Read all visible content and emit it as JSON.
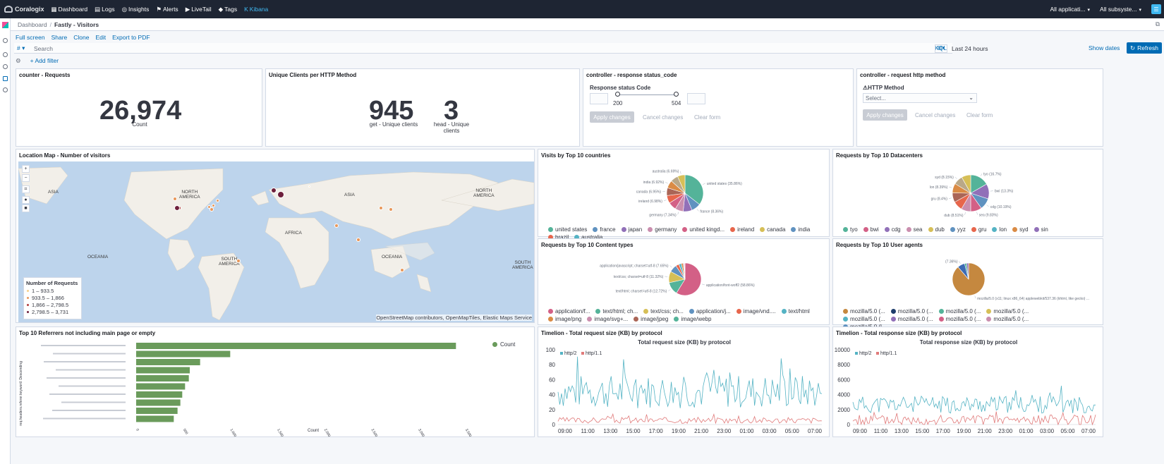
{
  "topnav": {
    "brand": "Coralogix",
    "items": [
      {
        "label": "Dashboard",
        "icon": "grid-icon"
      },
      {
        "label": "Logs",
        "icon": "document-icon"
      },
      {
        "label": "Insights",
        "icon": "insights-icon"
      },
      {
        "label": "Alerts",
        "icon": "flag-icon"
      },
      {
        "label": "LiveTail",
        "icon": "play-icon"
      },
      {
        "label": "Tags",
        "icon": "tag-icon"
      },
      {
        "label": "Kibana",
        "icon": "kibana-icon"
      }
    ],
    "app_select": "All applicati...",
    "subsystem_select": "All subsyste..."
  },
  "breadcrumb": {
    "root": "Dashboard",
    "current": "Fastly - Visitors"
  },
  "actions": [
    "Full screen",
    "Share",
    "Clone",
    "Edit",
    "Export to PDF"
  ],
  "query": {
    "placeholder": "Search",
    "lang": "KQL",
    "time": "Last 24 hours",
    "show_dates": "Show dates",
    "refresh": "Refresh",
    "hash": "#"
  },
  "filter": {
    "add": "+ Add filter"
  },
  "panels": {
    "requests": {
      "title": "counter - Requests",
      "value": "26,974",
      "label": "Count"
    },
    "unique": {
      "title": "Unique Clients per HTTP Method",
      "metrics": [
        {
          "value": "945",
          "label": "get - Unique clients"
        },
        {
          "value": "3",
          "label": "head - Unique clients"
        }
      ]
    },
    "status": {
      "title": "controller - response status_code",
      "field": "Response status Code",
      "min": "200",
      "max": "504",
      "apply": "Apply changes",
      "cancel": "Cancel changes",
      "clear": "Clear form"
    },
    "method": {
      "title": "controller - request http method",
      "field": "⚠HTTP Method",
      "placeholder": "Select...",
      "apply": "Apply changes",
      "cancel": "Cancel changes",
      "clear": "Clear form"
    },
    "map": {
      "title": "Location Map - Number of visitors",
      "legend_title": "Number of Requests",
      "legend": [
        "1 – 933.5",
        "933.5 – 1,866",
        "1,866 – 2,798.5",
        "2,798.5 – 3,731"
      ],
      "legend_colors": [
        "#f7d08a",
        "#e8975a",
        "#b03a3a",
        "#6d1f3c"
      ],
      "continents": [
        "ASIA",
        "NORTH AMERICA",
        "ASIA",
        "NORTH AMERICA",
        "AFRICA",
        "OCEANIA",
        "SOUTH AMERICA",
        "OCEANIA",
        "SOUTH AMERICA"
      ],
      "attribution": "OpenStreetMap contributors, OpenMapTiles, Elastic Maps Service"
    },
    "countries": {
      "title": "Visits by Top 10 countries"
    },
    "datacenters": {
      "title": "Requests by Top 10 Datacenters"
    },
    "content": {
      "title": "Requests by Top 10 Content types"
    },
    "agents": {
      "title": "Requests by Top 10 User agents"
    },
    "referrers": {
      "title": "Top 10 Referrers not including main page or empty",
      "legend": "Count",
      "ylabel": "req.headers.referer.keyword: Descending",
      "xlabel": "Count"
    },
    "timelion_req": {
      "title": "Timelion - Total request size (KB) by protocol",
      "chart_title": "Total request size (KB) by protocol"
    },
    "timelion_res": {
      "title": "Timelion - Total response size (KB) by protocol",
      "chart_title": "Total response size (KB) by protocol"
    }
  },
  "chart_data": [
    {
      "type": "pie",
      "name": "countries",
      "slices": [
        {
          "label": "united states",
          "pct": 35.86,
          "color": "#54b399",
          "text": "united states (35.86%)"
        },
        {
          "label": "france",
          "pct": 8.36,
          "color": "#6092c0",
          "text": "france (8.36%)"
        },
        {
          "label": "japan",
          "pct": 7.9,
          "color": "#9170b8",
          "text": ""
        },
        {
          "label": "germany",
          "pct": 7.34,
          "color": "#ca8eae",
          "text": "germany (7.34%)"
        },
        {
          "label": "united kingd...",
          "pct": 7.2,
          "color": "#d36086",
          "text": ""
        },
        {
          "label": "ireland",
          "pct": 6.98,
          "color": "#e7664c",
          "text": "ireland (6.98%)"
        },
        {
          "label": "canada",
          "pct": 6.95,
          "color": "#aa6556",
          "text": "canada (6.95%)"
        },
        {
          "label": "india",
          "pct": 6.92,
          "color": "#da8b45",
          "text": "india (6.92%)"
        },
        {
          "label": "brazil",
          "pct": 6.8,
          "color": "#b9a888",
          "text": ""
        },
        {
          "label": "australia",
          "pct": 6.69,
          "color": "#d6bf57",
          "text": "australia (6.69%)"
        }
      ],
      "legend": [
        {
          "label": "united states",
          "color": "#54b399"
        },
        {
          "label": "france",
          "color": "#6092c0"
        },
        {
          "label": "japan",
          "color": "#9170b8"
        },
        {
          "label": "germany",
          "color": "#ca8eae"
        },
        {
          "label": "united kingd...",
          "color": "#d36086"
        },
        {
          "label": "ireland",
          "color": "#e7664c"
        },
        {
          "label": "canada",
          "color": "#d6bf57"
        },
        {
          "label": "india",
          "color": "#6092c0"
        },
        {
          "label": "brazil",
          "color": "#e7664c"
        },
        {
          "label": "australia",
          "color": "#54b3c4"
        }
      ]
    },
    {
      "type": "pie",
      "name": "datacenters",
      "slices": [
        {
          "label": "tyo",
          "pct": 16.7,
          "color": "#54b399",
          "text": "tyo (16.7%)"
        },
        {
          "label": "bwi",
          "pct": 13.3,
          "color": "#9170b8",
          "text": "bwi (13.3%)"
        },
        {
          "label": "cdg",
          "pct": 10.19,
          "color": "#6092c0",
          "text": "cdg (10.19%)"
        },
        {
          "label": "sea",
          "pct": 9.83,
          "color": "#d36086",
          "text": "sea (9.83%)"
        },
        {
          "label": "dub",
          "pct": 8.51,
          "color": "#ca8eae",
          "text": "dub (8.51%)"
        },
        {
          "label": "yyz",
          "pct": 8.4,
          "color": "#e7664c",
          "text": ""
        },
        {
          "label": "gru",
          "pct": 8.4,
          "color": "#aa6556",
          "text": "gru (8.4%)"
        },
        {
          "label": "lon",
          "pct": 8.39,
          "color": "#da8b45",
          "text": "lon (8.39%)"
        },
        {
          "label": "syd",
          "pct": 8.15,
          "color": "#b9a888",
          "text": "syd (8.15%)"
        },
        {
          "label": "sin",
          "pct": 8.13,
          "color": "#d6bf57",
          "text": ""
        }
      ],
      "legend": [
        {
          "label": "tyo",
          "color": "#54b399"
        },
        {
          "label": "bwi",
          "color": "#d36086"
        },
        {
          "label": "cdg",
          "color": "#9170b8"
        },
        {
          "label": "sea",
          "color": "#ca8eae"
        },
        {
          "label": "dub",
          "color": "#d6bf57"
        },
        {
          "label": "yyz",
          "color": "#6092c0"
        },
        {
          "label": "gru",
          "color": "#e7664c"
        },
        {
          "label": "lon",
          "color": "#54b3c4"
        },
        {
          "label": "syd",
          "color": "#da8b45"
        },
        {
          "label": "sin",
          "color": "#9170b8"
        }
      ]
    },
    {
      "type": "pie",
      "name": "content",
      "slices": [
        {
          "label": "application/font-woff2",
          "pct": 58.86,
          "color": "#d36086",
          "text": "application/font-woff2 (58.86%)"
        },
        {
          "label": "text/html; charset=utf-8",
          "pct": 12.72,
          "color": "#54b399",
          "text": "text/html; charset=utf-8 (12.72%)"
        },
        {
          "label": "text/css; charset=utf-8",
          "pct": 11.32,
          "color": "#d6bf57",
          "text": "text/css; charset=utf-8 (11.32%)"
        },
        {
          "label": "application/javascript; charset=utf-8",
          "pct": 7.65,
          "color": "#6092c0",
          "text": "application/javascript; charset=utf-8 (7.65%)"
        },
        {
          "label": "image/vnd",
          "pct": 3.2,
          "color": "#e7664c",
          "text": ""
        },
        {
          "label": "text/html",
          "pct": 2.5,
          "color": "#54b3c4",
          "text": ""
        },
        {
          "label": "image/png",
          "pct": 1.9,
          "color": "#da8b45",
          "text": ""
        },
        {
          "label": "image/svg+",
          "pct": 1.0,
          "color": "#ca8eae",
          "text": ""
        },
        {
          "label": "image/jpeg",
          "pct": 0.5,
          "color": "#aa6556",
          "text": ""
        },
        {
          "label": "image/webp",
          "pct": 0.35,
          "color": "#b9a888",
          "text": ""
        }
      ],
      "legend": [
        {
          "label": "application/f...",
          "color": "#d36086"
        },
        {
          "label": "text/html; ch...",
          "color": "#54b399"
        },
        {
          "label": "text/css; ch...",
          "color": "#d6bf57"
        },
        {
          "label": "application/j...",
          "color": "#6092c0"
        },
        {
          "label": "image/vnd....",
          "color": "#e7664c"
        },
        {
          "label": "text/html",
          "color": "#54b3c4"
        },
        {
          "label": "image/png",
          "color": "#da8b45"
        },
        {
          "label": "image/svg+...",
          "color": "#ca8eae"
        },
        {
          "label": "image/jpeg",
          "color": "#aa6556"
        },
        {
          "label": "image/webp",
          "color": "#54b399"
        }
      ]
    },
    {
      "type": "pie",
      "name": "agents",
      "slices": [
        {
          "label": "mozilla/5.0 (x11; linux x86_64) applewebkit/537.36 (khtml, like gecko)",
          "pct": 88.64,
          "color": "#c5883f",
          "text": "mozilla/5.0 (x11; linux x86_64) applewebkit/537.36 (khtml, like gecko) ..."
        },
        {
          "label": "mozilla/5.0 (2)",
          "pct": 7.36,
          "color": "#3d6bb3",
          "text": "(7.36%)"
        },
        {
          "label": "mozilla/5.0 (3)",
          "pct": 2.0,
          "color": "#54b399",
          "text": ""
        },
        {
          "label": "mozilla/5.0 (4)",
          "pct": 2.0,
          "color": "#9170b8",
          "text": ""
        }
      ],
      "legend": [
        {
          "label": "mozilla/5.0 (...",
          "color": "#c5883f"
        },
        {
          "label": "mozilla/5.0 (...",
          "color": "#1e3d6b"
        },
        {
          "label": "mozilla/5.0 (...",
          "color": "#54b399"
        },
        {
          "label": "mozilla/5.0 (...",
          "color": "#d6bf57"
        },
        {
          "label": "mozilla/5.0 (...",
          "color": "#54b3c4"
        },
        {
          "label": "mozilla/5.0 (...",
          "color": "#9170b8"
        },
        {
          "label": "mozilla/5.0 (...",
          "color": "#d36086"
        },
        {
          "label": "mozilla/5.0 (...",
          "color": "#ca8eae"
        },
        {
          "label": "mozilla/5.0 (l...",
          "color": "#6092c0"
        }
      ]
    },
    {
      "type": "bar",
      "name": "referrers",
      "orientation": "horizontal",
      "values": [
        3400,
        1000,
        680,
        570,
        560,
        520,
        490,
        470,
        440,
        400
      ],
      "color": "#6a9b5b",
      "xlim": [
        0,
        3600
      ],
      "xticks": [
        "0",
        "500",
        "1,000",
        "1,500",
        "2,000",
        "2,500",
        "3,000",
        "3,500"
      ]
    },
    {
      "type": "line",
      "name": "timelion_req",
      "ylim": [
        0,
        100
      ],
      "yticks": [
        0,
        20,
        40,
        60,
        80,
        100
      ],
      "xticks": [
        "09:00",
        "11:00",
        "13:00",
        "15:00",
        "17:00",
        "19:00",
        "21:00",
        "23:00",
        "01:00",
        "03:00",
        "05:00",
        "07:00"
      ],
      "series": [
        {
          "name": "http/2",
          "color": "#54b3c4",
          "base": 35,
          "amp": 45,
          "seed": 7
        },
        {
          "name": "http/1.1",
          "color": "#e07a7a",
          "base": 4,
          "amp": 8,
          "seed": 3
        }
      ]
    },
    {
      "type": "line",
      "name": "timelion_res",
      "ylim": [
        0,
        10000
      ],
      "yticks": [
        0,
        2000,
        4000,
        6000,
        8000,
        10000
      ],
      "xticks": [
        "09:00",
        "11:00",
        "13:00",
        "15:00",
        "17:00",
        "19:00",
        "21:00",
        "23:00",
        "01:00",
        "03:00",
        "05:00",
        "07:00"
      ],
      "series": [
        {
          "name": "http/2",
          "color": "#54b3c4",
          "base": 2200,
          "amp": 2300,
          "seed": 11
        },
        {
          "name": "http/1.1",
          "color": "#e07a7a",
          "base": 300,
          "amp": 1400,
          "seed": 5
        }
      ]
    }
  ]
}
